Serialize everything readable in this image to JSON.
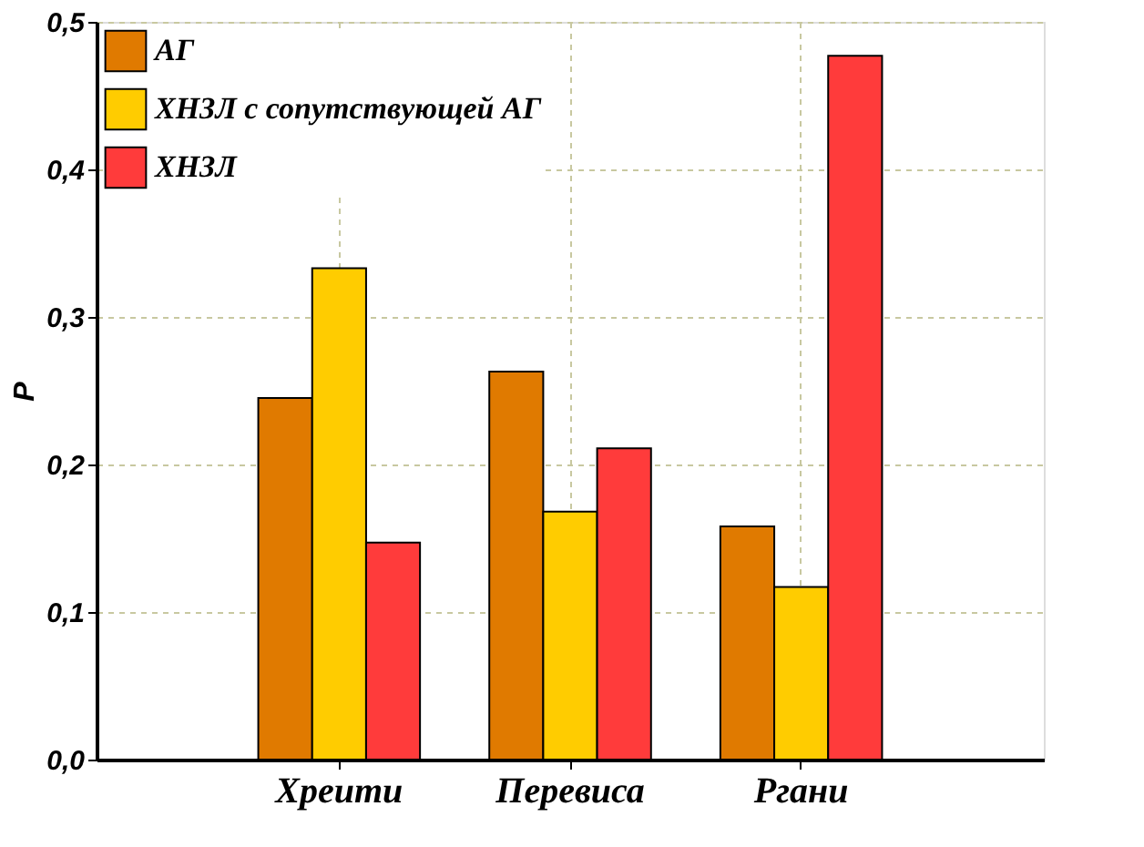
{
  "chart_data": {
    "type": "bar",
    "ylabel": "P",
    "categories": [
      "Хреити",
      "Перевиса",
      "Ргани"
    ],
    "series": [
      {
        "name": "АГ",
        "color": "#e07a00",
        "values": [
          0.245,
          0.263,
          0.158
        ]
      },
      {
        "name": "ХНЗЛ с сопутствующей АГ",
        "color": "#ffcc00",
        "values": [
          0.333,
          0.168,
          0.117
        ]
      },
      {
        "name": "ХНЗЛ",
        "color": "#ff3b3b",
        "values": [
          0.147,
          0.211,
          0.477
        ]
      }
    ],
    "ylim": [
      0,
      0.5
    ],
    "yticks": [
      {
        "value": 0,
        "label": "0,0"
      },
      {
        "value": 0.1,
        "label": "0,1"
      },
      {
        "value": 0.2,
        "label": "0,2"
      },
      {
        "value": 0.3,
        "label": "0,3"
      },
      {
        "value": 0.4,
        "label": "0,4"
      },
      {
        "value": 0.5,
        "label": "0,5"
      }
    ],
    "grid": true,
    "legend": "top left"
  }
}
